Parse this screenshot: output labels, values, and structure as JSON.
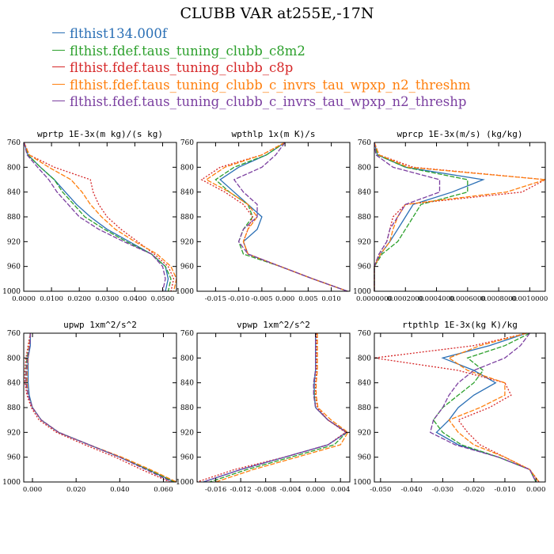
{
  "title": "CLUBB VAR at255E,-17N",
  "legend": [
    {
      "label": "flthist134.000f",
      "color": "#2a6fb5"
    },
    {
      "label": "flthist.fdef.taus_tuning_clubb_c8m2",
      "color": "#2ca02c"
    },
    {
      "label": "flthist.fdef.taus_tuning_clubb_c8p",
      "color": "#d62728"
    },
    {
      "label": "flthist.fdef.taus_tuning_clubb_c_invrs_tau_wpxp_n2_threshm",
      "color": "#ff7f0e"
    },
    {
      "label": "flthist.fdef.taus_tuning_clubb_c_invrs_tau_wpxp_n2_threshp",
      "color": "#7b3fa0"
    }
  ],
  "chart_data": [
    {
      "type": "line",
      "title": "wprtp  1E-3x(m kg)/(s kg)",
      "xlim": [
        0,
        0.055
      ],
      "ylim": [
        760,
        1000
      ],
      "xticks": [
        0,
        0.01,
        0.02,
        0.03,
        0.04,
        0.05
      ],
      "xtick_labels": [
        "0.0000",
        "0.0100",
        "0.0200",
        "0.0300",
        "0.0400",
        "0.0500"
      ],
      "yticks": [
        760,
        800,
        840,
        880,
        920,
        960,
        1000
      ],
      "y": [
        760,
        780,
        800,
        820,
        840,
        860,
        880,
        900,
        920,
        940,
        960,
        980,
        1000
      ],
      "series": [
        {
          "values": [
            0.0001,
            0.0015,
            0.006,
            0.011,
            0.015,
            0.019,
            0.024,
            0.03,
            0.038,
            0.046,
            0.051,
            0.052,
            0.051
          ]
        },
        {
          "values": [
            0.0001,
            0.0015,
            0.006,
            0.011,
            0.014,
            0.018,
            0.022,
            0.029,
            0.037,
            0.046,
            0.051,
            0.053,
            0.052
          ]
        },
        {
          "values": [
            0.0001,
            0.002,
            0.011,
            0.024,
            0.025,
            0.027,
            0.03,
            0.035,
            0.041,
            0.047,
            0.052,
            0.054,
            0.053
          ]
        },
        {
          "values": [
            0.0001,
            0.002,
            0.009,
            0.017,
            0.021,
            0.024,
            0.028,
            0.033,
            0.04,
            0.048,
            0.053,
            0.055,
            0.054
          ]
        },
        {
          "values": [
            0.0001,
            0.0012,
            0.005,
            0.009,
            0.012,
            0.016,
            0.02,
            0.027,
            0.036,
            0.046,
            0.05,
            0.051,
            0.05
          ]
        }
      ]
    },
    {
      "type": "line",
      "title": "wpthlp  1x(m K)/s",
      "xlim": [
        -0.019,
        0.014
      ],
      "ylim": [
        760,
        1000
      ],
      "xticks": [
        -0.015,
        -0.01,
        -0.005,
        0,
        0.005,
        0.01
      ],
      "xtick_labels": [
        "-0.015",
        "-0.010",
        "-0.005",
        "0.000",
        "0.005",
        "0.010"
      ],
      "yticks": [
        760,
        800,
        840,
        880,
        920,
        960,
        1000
      ],
      "y": [
        760,
        780,
        800,
        820,
        840,
        860,
        880,
        900,
        920,
        940,
        960,
        980,
        1000
      ],
      "series": [
        {
          "values": [
            0,
            -0.004,
            -0.01,
            -0.014,
            -0.011,
            -0.008,
            -0.005,
            -0.006,
            -0.009,
            -0.008,
            -0.001,
            0.006,
            0.0135
          ]
        },
        {
          "values": [
            0,
            -0.004,
            -0.011,
            -0.015,
            -0.012,
            -0.008,
            -0.007,
            -0.009,
            -0.01,
            -0.009,
            -0.001,
            0.006,
            0.0135
          ]
        },
        {
          "values": [
            0,
            -0.005,
            -0.014,
            -0.018,
            -0.013,
            -0.009,
            -0.007,
            -0.008,
            -0.009,
            -0.008,
            -0.001,
            0.006,
            0.0135
          ]
        },
        {
          "values": [
            0,
            -0.005,
            -0.013,
            -0.017,
            -0.012,
            -0.008,
            -0.006,
            -0.008,
            -0.009,
            -0.008,
            -0.001,
            0.006,
            0.0135
          ]
        },
        {
          "values": [
            0,
            -0.002,
            -0.005,
            -0.011,
            -0.009,
            -0.006,
            -0.006,
            -0.009,
            -0.01,
            -0.008,
            -0.001,
            0.006,
            0.0135
          ]
        }
      ]
    },
    {
      "type": "line",
      "title": "wprcp  1E-3x(m/s) (kg/kg)",
      "xlim": [
        0,
        0.0011
      ],
      "ylim": [
        760,
        1000
      ],
      "xticks": [
        0,
        0.0002,
        0.0004,
        0.0006,
        0.0008,
        0.001
      ],
      "xtick_labels": [
        "0.0000000",
        "0.0002000",
        "0.0004000",
        "0.0006000",
        "0.0008000",
        "0.0010000"
      ],
      "yticks": [
        760,
        800,
        840,
        880,
        920,
        960,
        1000
      ],
      "y": [
        760,
        780,
        800,
        820,
        840,
        860,
        880,
        900,
        920,
        940,
        960,
        980,
        1000
      ],
      "series": [
        {
          "values": [
            0,
            2e-05,
            0.0002,
            0.0007,
            0.0005,
            0.00025,
            0.0002,
            0.00015,
            0.0001,
            4e-05,
            0,
            0,
            0
          ]
        },
        {
          "values": [
            0,
            2e-05,
            0.0002,
            0.0006,
            0.0006,
            0.0003,
            0.00025,
            0.0002,
            0.00015,
            5e-05,
            0,
            0,
            0
          ]
        },
        {
          "values": [
            0,
            3e-05,
            0.00025,
            0.0011,
            0.00095,
            0.0002,
            0.00012,
            0.0001,
            8e-05,
            3e-05,
            0,
            0,
            0
          ]
        },
        {
          "values": [
            0,
            3e-05,
            0.00022,
            0.0011,
            0.00085,
            0.0002,
            0.00015,
            0.00012,
            0.0001,
            4e-05,
            0,
            0,
            0
          ]
        },
        {
          "values": [
            0,
            1e-05,
            0.00012,
            0.00042,
            0.00042,
            0.0002,
            0.00015,
            0.0001,
            8e-05,
            3e-05,
            0,
            0,
            0
          ]
        }
      ]
    },
    {
      "type": "line",
      "title": "upwp  1xm^2/s^2",
      "xlim": [
        -0.004,
        0.066
      ],
      "ylim": [
        760,
        1000
      ],
      "xticks": [
        0,
        0.02,
        0.04,
        0.06
      ],
      "xtick_labels": [
        "0.000",
        "0.020",
        "0.040",
        "0.060"
      ],
      "yticks": [
        760,
        800,
        840,
        880,
        920,
        960,
        1000
      ],
      "y": [
        760,
        780,
        800,
        820,
        840,
        860,
        880,
        900,
        920,
        940,
        960,
        980,
        1000
      ],
      "series": [
        {
          "values": [
            -0.001,
            -0.001,
            -0.002,
            -0.002,
            -0.002,
            -0.0015,
            0,
            0.004,
            0.012,
            0.026,
            0.04,
            0.053,
            0.065
          ]
        },
        {
          "values": [
            -0.001,
            -0.0015,
            -0.0025,
            -0.003,
            -0.003,
            -0.002,
            0,
            0.004,
            0.012,
            0.026,
            0.04,
            0.053,
            0.065
          ]
        },
        {
          "values": [
            -0.001,
            -0.002,
            -0.003,
            -0.0035,
            -0.0035,
            -0.0025,
            -0.0005,
            0.003,
            0.011,
            0.024,
            0.038,
            0.05,
            0.063
          ]
        },
        {
          "values": [
            -0.001,
            -0.0015,
            -0.002,
            -0.0025,
            -0.0025,
            -0.002,
            0,
            0.004,
            0.012,
            0.026,
            0.041,
            0.054,
            0.066
          ]
        },
        {
          "values": [
            -0.001,
            -0.0012,
            -0.0022,
            -0.0028,
            -0.003,
            -0.002,
            0,
            0.004,
            0.012,
            0.026,
            0.04,
            0.052,
            0.064
          ]
        }
      ]
    },
    {
      "type": "line",
      "title": "vpwp  1xm^2/s^2",
      "xlim": [
        -0.019,
        0.0055
      ],
      "ylim": [
        760,
        1000
      ],
      "xticks": [
        -0.016,
        -0.012,
        -0.008,
        -0.004,
        0,
        0.004
      ],
      "xtick_labels": [
        "-0.016",
        "-0.012",
        "-0.008",
        "-0.004",
        "0.000",
        "0.004"
      ],
      "yticks": [
        760,
        800,
        840,
        880,
        920,
        960,
        1000
      ],
      "y": [
        760,
        780,
        800,
        820,
        840,
        860,
        880,
        900,
        920,
        940,
        960,
        980,
        1000
      ],
      "series": [
        {
          "values": [
            0,
            0,
            0,
            0,
            -0.0002,
            -0.0002,
            0,
            0.002,
            0.005,
            0.002,
            -0.005,
            -0.012,
            -0.018
          ]
        },
        {
          "values": [
            0,
            0,
            0,
            0,
            -0.0003,
            -0.0002,
            0,
            0.002,
            0.005,
            0.003,
            -0.004,
            -0.011,
            -0.017
          ]
        },
        {
          "values": [
            0.0002,
            0.0002,
            0.0002,
            0.0002,
            0,
            0,
            0.0003,
            0.002,
            0.0048,
            0.002,
            -0.005,
            -0.013,
            -0.019
          ]
        },
        {
          "values": [
            0.0003,
            0.0003,
            0.0003,
            0.0003,
            0.0001,
            0.0001,
            0.0004,
            0.0025,
            0.0052,
            0.004,
            -0.003,
            -0.01,
            -0.016
          ]
        },
        {
          "values": [
            0,
            0,
            0,
            0,
            -0.0003,
            -0.0003,
            0,
            0.002,
            0.005,
            0.002,
            -0.005,
            -0.012,
            -0.018
          ]
        }
      ]
    },
    {
      "type": "line",
      "title": "rtpthlp  1E-3x(kg K)/kg",
      "xlim": [
        -0.052,
        0.003
      ],
      "ylim": [
        760,
        1000
      ],
      "xticks": [
        -0.05,
        -0.04,
        -0.03,
        -0.02,
        -0.01,
        0
      ],
      "xtick_labels": [
        "-0.050",
        "-0.040",
        "-0.030",
        "-0.020",
        "-0.010",
        "0.000"
      ],
      "yticks": [
        760,
        800,
        840,
        880,
        920,
        960,
        1000
      ],
      "y": [
        760,
        780,
        800,
        820,
        840,
        860,
        880,
        900,
        920,
        940,
        960,
        980,
        1000
      ],
      "series": [
        {
          "values": [
            -0.003,
            -0.015,
            -0.03,
            -0.02,
            -0.013,
            -0.02,
            -0.025,
            -0.028,
            -0.032,
            -0.025,
            -0.012,
            -0.002,
            0
          ]
        },
        {
          "values": [
            -0.002,
            -0.01,
            -0.022,
            -0.017,
            -0.02,
            -0.025,
            -0.03,
            -0.033,
            -0.03,
            -0.024,
            -0.012,
            -0.002,
            0
          ]
        },
        {
          "values": [
            -0.003,
            -0.02,
            -0.052,
            -0.025,
            -0.01,
            -0.008,
            -0.015,
            -0.025,
            -0.022,
            -0.018,
            -0.01,
            -0.002,
            0.001
          ]
        },
        {
          "values": [
            -0.003,
            -0.018,
            -0.028,
            -0.022,
            -0.01,
            -0.01,
            -0.018,
            -0.028,
            -0.025,
            -0.02,
            -0.01,
            -0.002,
            0.001
          ]
        },
        {
          "values": [
            -0.002,
            -0.005,
            -0.01,
            -0.02,
            -0.025,
            -0.028,
            -0.03,
            -0.033,
            -0.034,
            -0.026,
            -0.012,
            -0.002,
            0
          ]
        }
      ]
    }
  ]
}
